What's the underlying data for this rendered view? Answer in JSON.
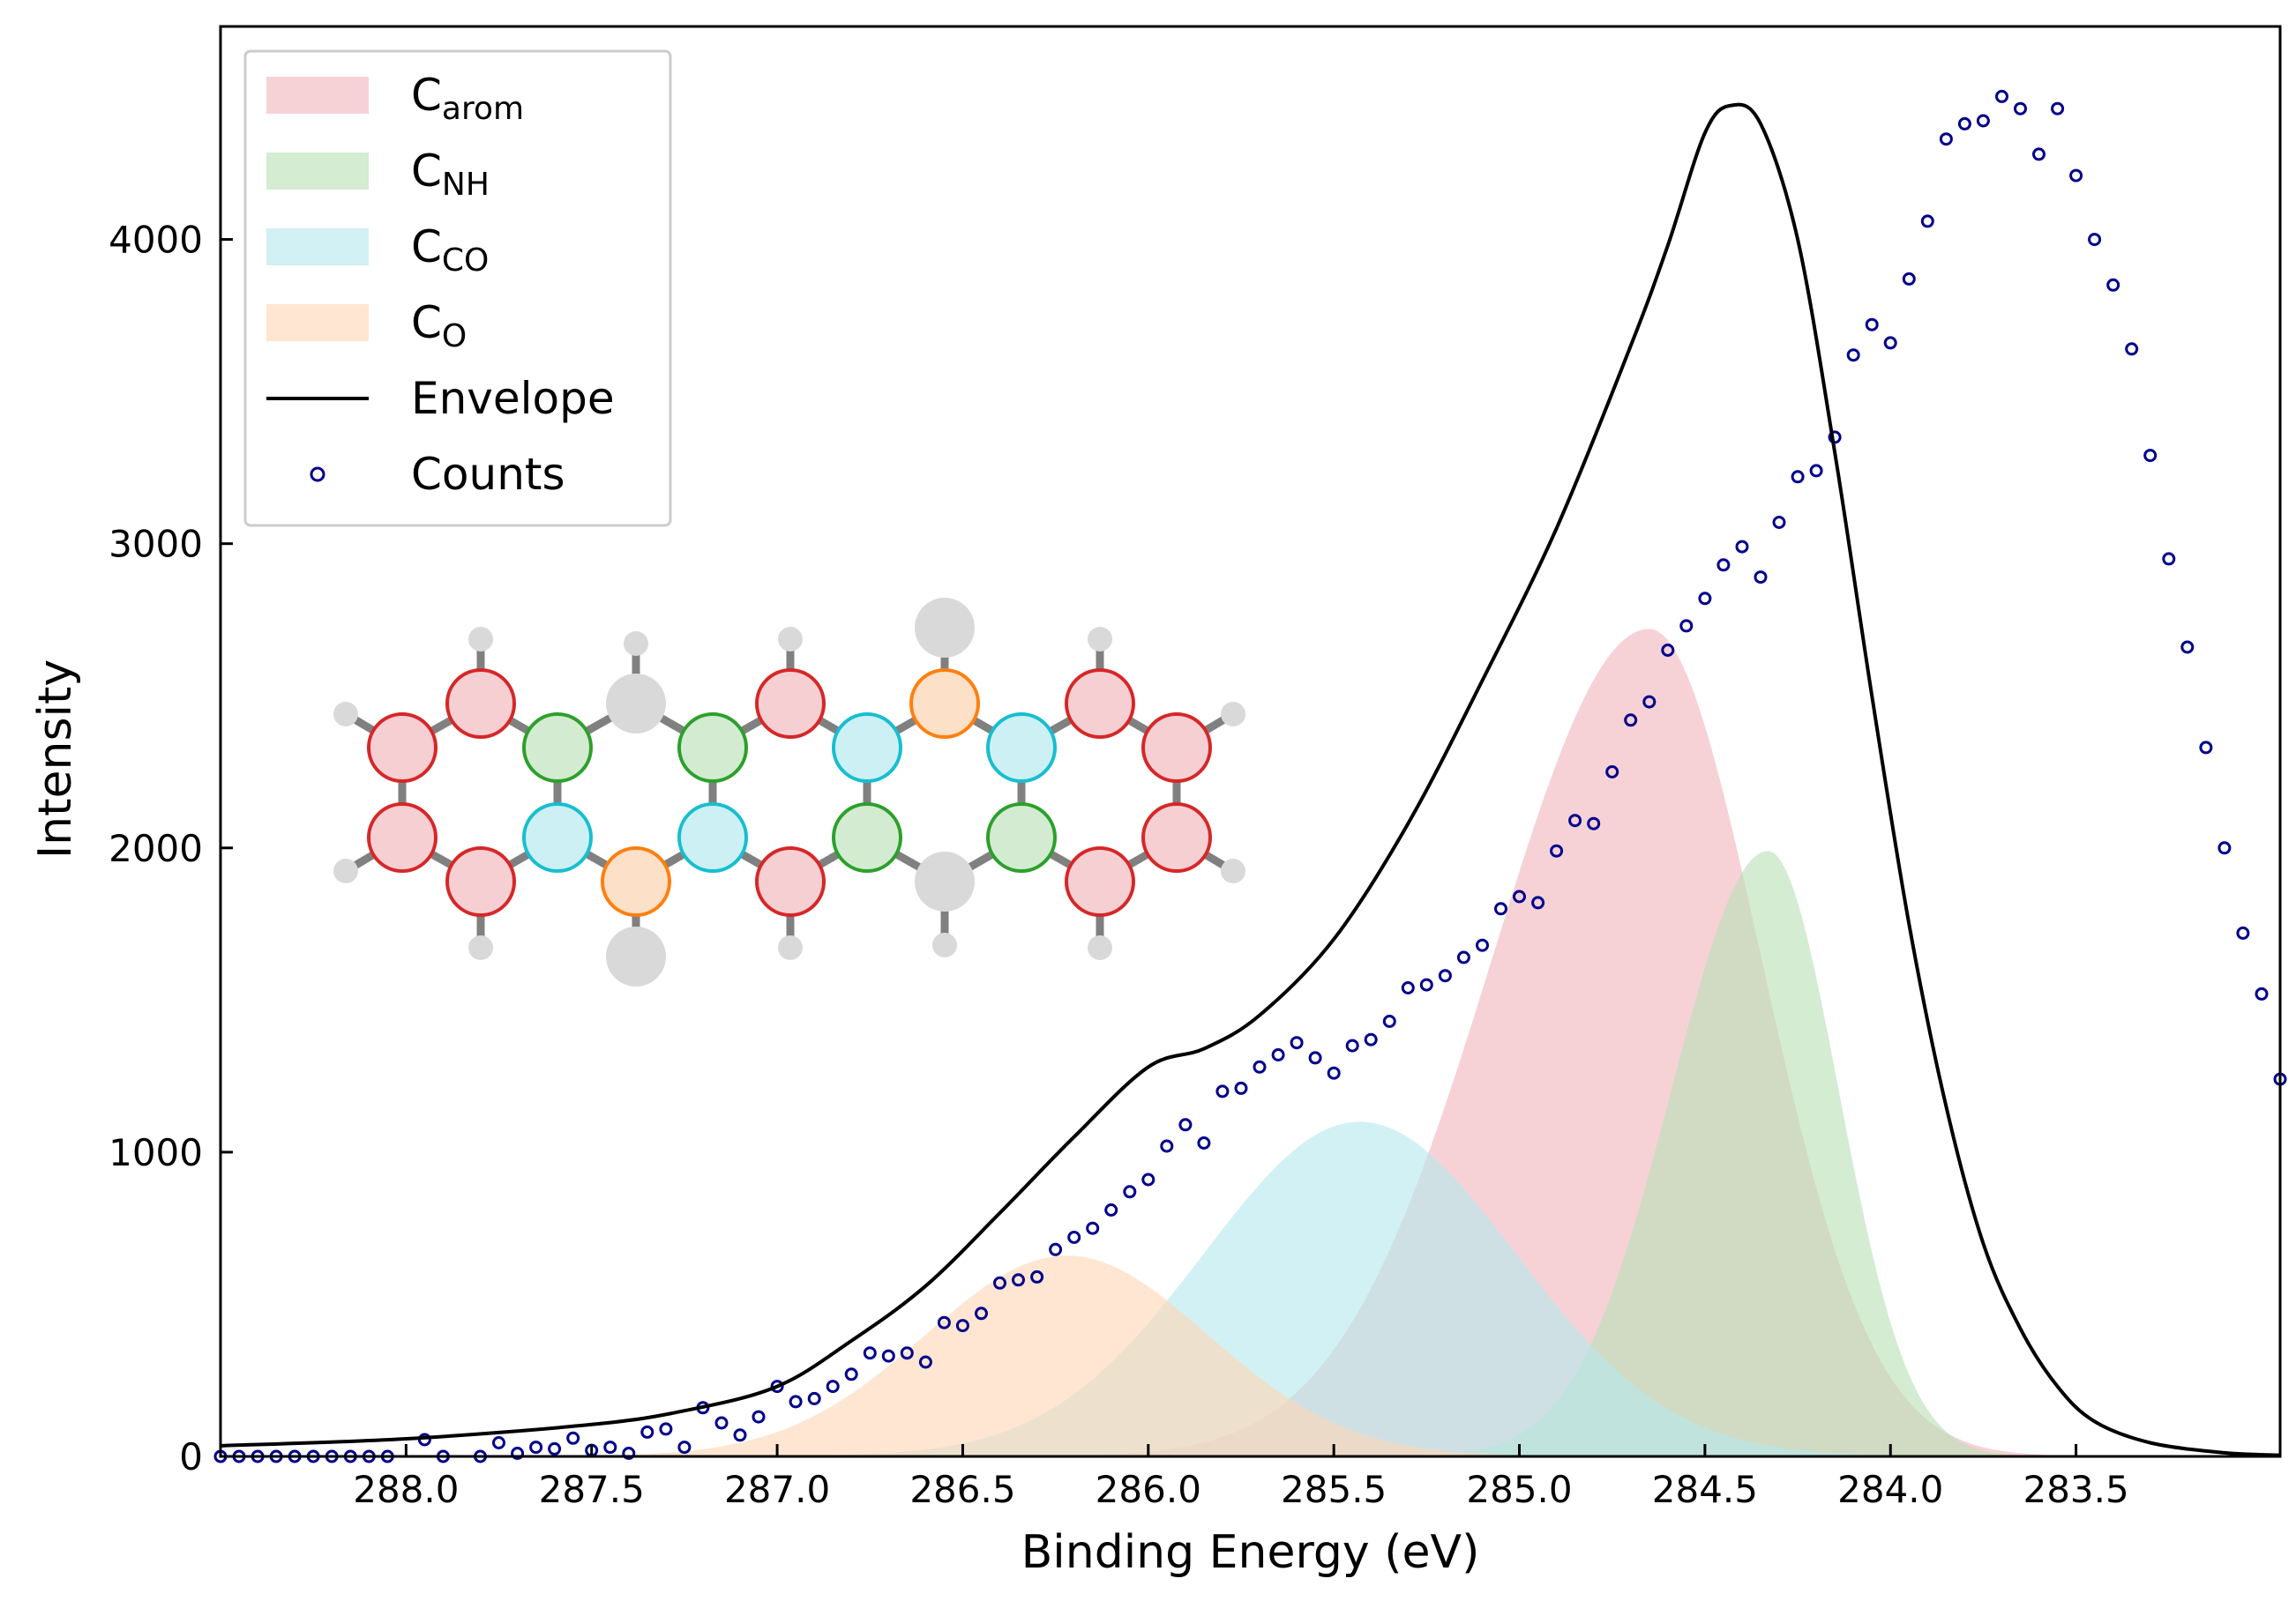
{
  "chart_data": {
    "type": "area",
    "title": "",
    "xlabel": "Binding Energy (eV)",
    "ylabel": "Intensity",
    "xlim": [
      288.5,
      282.95
    ],
    "ylim": [
      0,
      4700
    ],
    "x_reversed": true,
    "grid": false,
    "legend_position": "top-left",
    "x_ticks": [
      {
        "value": 288.0,
        "label": "288.0"
      },
      {
        "value": 287.5,
        "label": "287.5"
      },
      {
        "value": 287.0,
        "label": "287.0"
      },
      {
        "value": 286.5,
        "label": "286.5"
      },
      {
        "value": 286.0,
        "label": "286.0"
      },
      {
        "value": 285.5,
        "label": "285.5"
      },
      {
        "value": 285.0,
        "label": "285.0"
      },
      {
        "value": 284.5,
        "label": "284.5"
      },
      {
        "value": 284.0,
        "label": "284.0"
      },
      {
        "value": 283.5,
        "label": "283.5"
      }
    ],
    "y_ticks": [
      {
        "value": 0,
        "label": "0"
      },
      {
        "value": 1000,
        "label": "1000"
      },
      {
        "value": 2000,
        "label": "2000"
      },
      {
        "value": 3000,
        "label": "3000"
      },
      {
        "value": 4000,
        "label": "4000"
      }
    ],
    "series": [
      {
        "name": "C",
        "sub": "arom",
        "kind": "area",
        "color": "#f0b7be",
        "opacity": 0.62,
        "peak": {
          "center": 284.65,
          "amplitude": 2720,
          "sigma_low_be": 0.3,
          "sigma_high_be": 0.42
        }
      },
      {
        "name": "C",
        "sub": "NH",
        "kind": "area",
        "color": "#b9e0b6",
        "opacity": 0.62,
        "peak": {
          "center": 284.33,
          "amplitude": 1990,
          "sigma_low_be": 0.19,
          "sigma_high_be": 0.26
        }
      },
      {
        "name": "C",
        "sub": "CO",
        "kind": "area",
        "color": "#b6e8ee",
        "opacity": 0.62,
        "peak": {
          "center": 285.43,
          "amplitude": 1100,
          "sigma_low_be": 0.42,
          "sigma_high_be": 0.42
        }
      },
      {
        "name": "C",
        "sub": "O",
        "kind": "area",
        "color": "#fdd6b6",
        "opacity": 0.62,
        "peak": {
          "center": 286.22,
          "amplitude": 660,
          "sigma_low_be": 0.38,
          "sigma_high_be": 0.38
        }
      },
      {
        "name": "Envelope",
        "kind": "line",
        "color": "#000000",
        "points": [
          [
            288.5,
            35
          ],
          [
            288.0,
            58
          ],
          [
            287.5,
            105
          ],
          [
            287.25,
            150
          ],
          [
            287.0,
            230
          ],
          [
            286.8,
            380
          ],
          [
            286.6,
            560
          ],
          [
            286.4,
            800
          ],
          [
            286.2,
            1050
          ],
          [
            286.0,
            1280
          ],
          [
            285.85,
            1340
          ],
          [
            285.7,
            1450
          ],
          [
            285.5,
            1700
          ],
          [
            285.3,
            2080
          ],
          [
            285.1,
            2550
          ],
          [
            284.9,
            3050
          ],
          [
            284.7,
            3650
          ],
          [
            284.6,
            3980
          ],
          [
            284.5,
            4350
          ],
          [
            284.43,
            4440
          ],
          [
            284.35,
            4380
          ],
          [
            284.25,
            4000
          ],
          [
            284.15,
            3300
          ],
          [
            284.05,
            2500
          ],
          [
            283.95,
            1750
          ],
          [
            283.85,
            1150
          ],
          [
            283.75,
            700
          ],
          [
            283.65,
            420
          ],
          [
            283.55,
            230
          ],
          [
            283.45,
            115
          ],
          [
            283.3,
            45
          ],
          [
            283.1,
            12
          ],
          [
            282.95,
            4
          ]
        ]
      },
      {
        "name": "Counts",
        "kind": "scatter",
        "color": "#00008b",
        "points": [
          [
            288.5,
            0
          ],
          [
            288.45,
            0
          ],
          [
            288.4,
            0
          ],
          [
            288.35,
            0
          ],
          [
            288.3,
            0
          ],
          [
            288.25,
            0
          ],
          [
            288.2,
            0
          ],
          [
            288.15,
            0
          ],
          [
            288.1,
            0
          ],
          [
            288.05,
            0
          ],
          [
            287.95,
            55
          ],
          [
            287.9,
            0
          ],
          [
            287.8,
            0
          ],
          [
            287.75,
            45
          ],
          [
            287.7,
            10
          ],
          [
            287.65,
            30
          ],
          [
            287.6,
            25
          ],
          [
            287.55,
            60
          ],
          [
            287.5,
            20
          ],
          [
            287.45,
            30
          ],
          [
            287.4,
            10
          ],
          [
            287.35,
            80
          ],
          [
            287.3,
            90
          ],
          [
            287.25,
            30
          ],
          [
            287.2,
            160
          ],
          [
            287.15,
            110
          ],
          [
            287.1,
            70
          ],
          [
            287.05,
            130
          ],
          [
            287.0,
            230
          ],
          [
            286.95,
            180
          ],
          [
            286.9,
            190
          ],
          [
            286.85,
            230
          ],
          [
            286.8,
            270
          ],
          [
            286.75,
            340
          ],
          [
            286.7,
            330
          ],
          [
            286.65,
            340
          ],
          [
            286.6,
            310
          ],
          [
            286.55,
            440
          ],
          [
            286.5,
            430
          ],
          [
            286.45,
            470
          ],
          [
            286.4,
            570
          ],
          [
            286.35,
            580
          ],
          [
            286.3,
            590
          ],
          [
            286.25,
            680
          ],
          [
            286.2,
            720
          ],
          [
            286.15,
            750
          ],
          [
            286.1,
            810
          ],
          [
            286.05,
            870
          ],
          [
            286.0,
            910
          ],
          [
            285.95,
            1020
          ],
          [
            285.9,
            1090
          ],
          [
            285.85,
            1030
          ],
          [
            285.8,
            1200
          ],
          [
            285.75,
            1210
          ],
          [
            285.7,
            1280
          ],
          [
            285.65,
            1320
          ],
          [
            285.6,
            1360
          ],
          [
            285.55,
            1310
          ],
          [
            285.5,
            1260
          ],
          [
            285.45,
            1350
          ],
          [
            285.4,
            1370
          ],
          [
            285.35,
            1430
          ],
          [
            285.3,
            1540
          ],
          [
            285.25,
            1550
          ],
          [
            285.2,
            1580
          ],
          [
            285.15,
            1640
          ],
          [
            285.1,
            1680
          ],
          [
            285.05,
            1800
          ],
          [
            285.0,
            1840
          ],
          [
            284.95,
            1820
          ],
          [
            284.9,
            1990
          ],
          [
            284.85,
            2090
          ],
          [
            284.8,
            2080
          ],
          [
            284.75,
            2250
          ],
          [
            284.7,
            2420
          ],
          [
            284.65,
            2480
          ],
          [
            284.6,
            2650
          ],
          [
            284.55,
            2730
          ],
          [
            284.5,
            2820
          ],
          [
            284.45,
            2930
          ],
          [
            284.4,
            2990
          ],
          [
            284.35,
            2890
          ],
          [
            284.3,
            3070
          ],
          [
            284.25,
            3220
          ],
          [
            284.2,
            3240
          ],
          [
            284.15,
            3350
          ],
          [
            284.1,
            3620
          ],
          [
            284.05,
            3720
          ],
          [
            284.0,
            3660
          ],
          [
            283.95,
            3870
          ],
          [
            283.9,
            4060
          ],
          [
            283.85,
            4330
          ],
          [
            283.8,
            4380
          ],
          [
            283.75,
            4390
          ],
          [
            283.7,
            4470
          ],
          [
            283.65,
            4430
          ],
          [
            283.6,
            4280
          ],
          [
            283.55,
            4430
          ],
          [
            283.5,
            4210
          ],
          [
            283.45,
            4000
          ],
          [
            283.4,
            3850
          ],
          [
            283.35,
            3640
          ],
          [
            283.3,
            3290
          ],
          [
            283.25,
            2950
          ],
          [
            283.2,
            2660
          ],
          [
            283.15,
            2330
          ],
          [
            283.1,
            2000
          ],
          [
            283.05,
            1720
          ],
          [
            283.0,
            1520
          ],
          [
            282.95,
            1240
          ]
        ]
      }
    ]
  },
  "legend": {
    "items": [
      {
        "main": "C",
        "sub": "arom",
        "kind": "patch",
        "color": "#f0b7be"
      },
      {
        "main": "C",
        "sub": "NH",
        "kind": "patch",
        "color": "#b9e0b6"
      },
      {
        "main": "C",
        "sub": "CO",
        "kind": "patch",
        "color": "#b6e8ee"
      },
      {
        "main": "C",
        "sub": "O",
        "kind": "patch",
        "color": "#fdd6b6"
      },
      {
        "main": "Envelope",
        "sub": "",
        "kind": "line",
        "color": "#000000"
      },
      {
        "main": "Counts",
        "sub": "",
        "kind": "marker",
        "color": "#00008b"
      }
    ]
  },
  "molecule": {
    "atom_colors": {
      "arom": "#d62728",
      "NH": "#2ca02c",
      "CO": "#17becf",
      "O": "#ff7f0e"
    }
  }
}
